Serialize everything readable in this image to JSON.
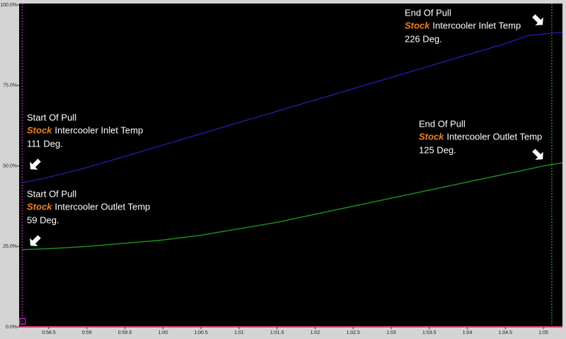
{
  "chart_data": {
    "type": "line",
    "x": [
      58.15,
      58.5,
      59,
      59.5,
      60,
      60.5,
      61,
      61.5,
      62,
      62.5,
      63,
      63.5,
      64,
      64.5,
      64.8,
      65,
      65.25
    ],
    "series": [
      {
        "name": "Intercooler Inlet Temp",
        "color": "#1c1c9c",
        "values": [
          44.8,
          46.5,
          49.5,
          53,
          56.5,
          60,
          63.5,
          67,
          70.5,
          74,
          77.5,
          81,
          84.5,
          88,
          90.5,
          91,
          91.5
        ]
      },
      {
        "name": "Intercooler Outlet Temp",
        "color": "#1c8c1c",
        "values": [
          24,
          24.3,
          25,
          26,
          27,
          28.5,
          30.5,
          32.5,
          35,
          37.5,
          40,
          42.5,
          45,
          47.5,
          49,
          50,
          51
        ]
      }
    ],
    "xlim": [
      58.11,
      65.25
    ],
    "ylim": [
      0,
      100
    ],
    "xticks": [
      {
        "value": 58.5,
        "label": "0:58.5"
      },
      {
        "value": 59,
        "label": "0:59"
      },
      {
        "value": 59.5,
        "label": "0:59.5"
      },
      {
        "value": 60,
        "label": "1:00"
      },
      {
        "value": 60.5,
        "label": "1:00.5"
      },
      {
        "value": 61,
        "label": "1:01"
      },
      {
        "value": 61.5,
        "label": "1:01.5"
      },
      {
        "value": 62,
        "label": "1:02"
      },
      {
        "value": 62.5,
        "label": "1:02.5"
      },
      {
        "value": 63,
        "label": "1:03"
      },
      {
        "value": 63.5,
        "label": "1:03.5"
      },
      {
        "value": 64,
        "label": "1:04"
      },
      {
        "value": 64.5,
        "label": "1:04.5"
      },
      {
        "value": 65,
        "label": "1:05"
      }
    ],
    "yticks": [
      {
        "value": 0,
        "label": "0.0%"
      },
      {
        "value": 25,
        "label": "25.0%"
      },
      {
        "value": 50,
        "label": "50.0%"
      },
      {
        "value": 75,
        "label": "75.0%"
      },
      {
        "value": 100,
        "label": "100.0%"
      }
    ],
    "cursors": [
      {
        "x": 58.15,
        "color": "#e040e0"
      },
      {
        "x": 65.11,
        "color": "#40c040"
      }
    ],
    "annotations": [
      {
        "title": "End Of Pull",
        "brand": "Stock",
        "label": "Intercooler Inlet Temp",
        "value": "226 Deg."
      },
      {
        "title": "Start Of Pull",
        "brand": "Stock",
        "label": "Intercooler Inlet Temp",
        "value": "111 Deg."
      },
      {
        "title": "End Of Pull",
        "brand": "Stock",
        "label": "Intercooler Outlet Temp",
        "value": "125 Deg."
      },
      {
        "title": "Start Of Pull",
        "brand": "Stock",
        "label": "Intercooler Outlet Temp",
        "value": "59 Deg."
      }
    ]
  }
}
